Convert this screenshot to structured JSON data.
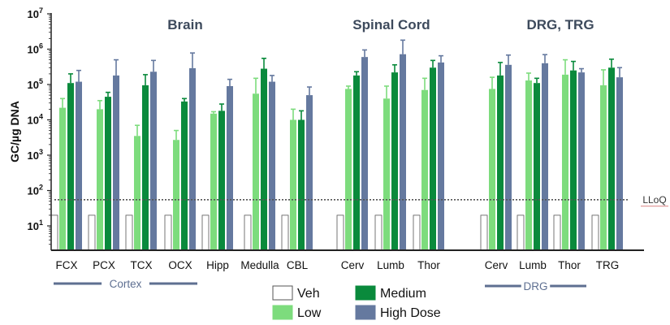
{
  "chart_data": {
    "type": "bar",
    "scale": "log",
    "ylabel": "GC/µg DNA",
    "ylim": [
      2,
      10000000
    ],
    "yticks": [
      {
        "value": 10,
        "base": "10",
        "exp": "1"
      },
      {
        "value": 100,
        "base": "10",
        "exp": "2"
      },
      {
        "value": 1000,
        "base": "10",
        "exp": "3"
      },
      {
        "value": 10000,
        "base": "10",
        "exp": "4"
      },
      {
        "value": 100000,
        "base": "10",
        "exp": "5"
      },
      {
        "value": 1000000,
        "base": "10",
        "exp": "6"
      },
      {
        "value": 10000000,
        "base": "10",
        "exp": "7"
      }
    ],
    "lloq": {
      "value": 55,
      "label": "LLoQ"
    },
    "sections": [
      {
        "title": "Brain",
        "categories": [
          "FCX",
          "PCX",
          "TCX",
          "OCX",
          "Hipp",
          "Medulla",
          "CBL"
        ]
      },
      {
        "title": "Spinal Cord",
        "categories": [
          "Cerv",
          "Lumb",
          "Thor"
        ]
      },
      {
        "title": "DRG, TRG",
        "categories": [
          "Cerv",
          "Lumb",
          "Thor",
          "TRG"
        ]
      }
    ],
    "brackets": [
      {
        "label": "Cortex",
        "spans": [
          "FCX",
          "OCX"
        ]
      },
      {
        "label": "DRG",
        "spans": [
          "Cerv",
          "Thor"
        ]
      }
    ],
    "categories": [
      "FCX",
      "PCX",
      "TCX",
      "OCX",
      "Hipp",
      "Medulla",
      "CBL",
      "Cerv",
      "Lumb",
      "Thor",
      "Cerv",
      "Lumb",
      "Thor",
      "TRG"
    ],
    "series": [
      {
        "name": "Veh",
        "color": "#ffffff",
        "stroke": "#555555",
        "values": [
          20,
          20,
          20,
          20,
          20,
          20,
          20,
          20,
          20,
          20,
          20,
          20,
          20,
          20
        ],
        "err_upper": [
          null,
          null,
          null,
          null,
          null,
          null,
          null,
          null,
          null,
          null,
          null,
          null,
          null,
          null
        ]
      },
      {
        "name": "Low",
        "color": "#7ddc7d",
        "stroke": "#7ddc7d",
        "values": [
          22000,
          20000,
          3500,
          2700,
          15000,
          55000,
          10000,
          75000,
          40000,
          70000,
          75000,
          130000,
          190000,
          95000
        ],
        "err_upper": [
          40000,
          35000,
          7000,
          5000,
          17000,
          150000,
          20000,
          90000,
          90000,
          150000,
          160000,
          210000,
          500000,
          260000
        ]
      },
      {
        "name": "Medium",
        "color": "#0a8a3c",
        "stroke": "#0a8a3c",
        "values": [
          110000,
          45000,
          95000,
          33000,
          18000,
          280000,
          10000,
          180000,
          220000,
          300000,
          180000,
          110000,
          250000,
          300000
        ],
        "err_upper": [
          200000,
          60000,
          190000,
          40000,
          28000,
          550000,
          18000,
          230000,
          360000,
          480000,
          420000,
          150000,
          450000,
          520000
        ]
      },
      {
        "name": "High Dose",
        "color": "#65799f",
        "stroke": "#65799f",
        "values": [
          120000,
          180000,
          230000,
          290000,
          90000,
          120000,
          50000,
          600000,
          720000,
          420000,
          360000,
          400000,
          220000,
          160000
        ],
        "err_upper": [
          250000,
          500000,
          480000,
          780000,
          140000,
          180000,
          85000,
          950000,
          1800000,
          650000,
          680000,
          700000,
          280000,
          300000
        ]
      }
    ],
    "legend": [
      {
        "name": "Veh",
        "color": "#ffffff",
        "stroke": "#555555"
      },
      {
        "name": "Medium",
        "color": "#0a8a3c",
        "stroke": "#0a8a3c"
      },
      {
        "name": "Low",
        "color": "#7ddc7d",
        "stroke": "#7ddc7d"
      },
      {
        "name": "High Dose",
        "color": "#65799f",
        "stroke": "#65799f"
      }
    ],
    "colors": {
      "axis": "#222222",
      "title": "#3d4a5c",
      "bracket": "#5e6f91",
      "lloq_line": "#555555",
      "error": "#7f8a9e"
    }
  }
}
